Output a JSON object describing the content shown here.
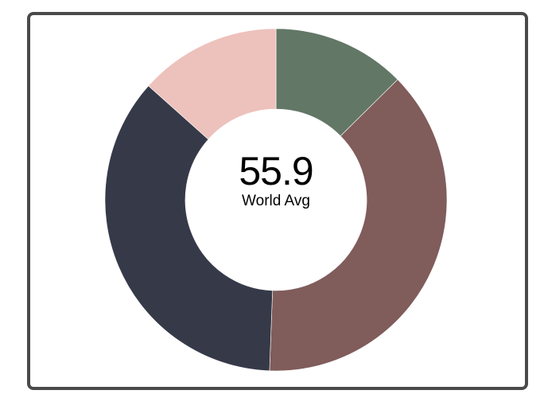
{
  "chart_data": {
    "type": "pie",
    "donut": true,
    "title": "",
    "legend": "none",
    "center_value": "55.9",
    "center_label": "World Avg",
    "slices": [
      {
        "value": 12.6,
        "color": "#627766"
      },
      {
        "value": 38.0,
        "color": "#805c5b"
      },
      {
        "value": 36.0,
        "color": "#363a48"
      },
      {
        "value": 13.4,
        "color": "#edc1bc"
      }
    ]
  }
}
